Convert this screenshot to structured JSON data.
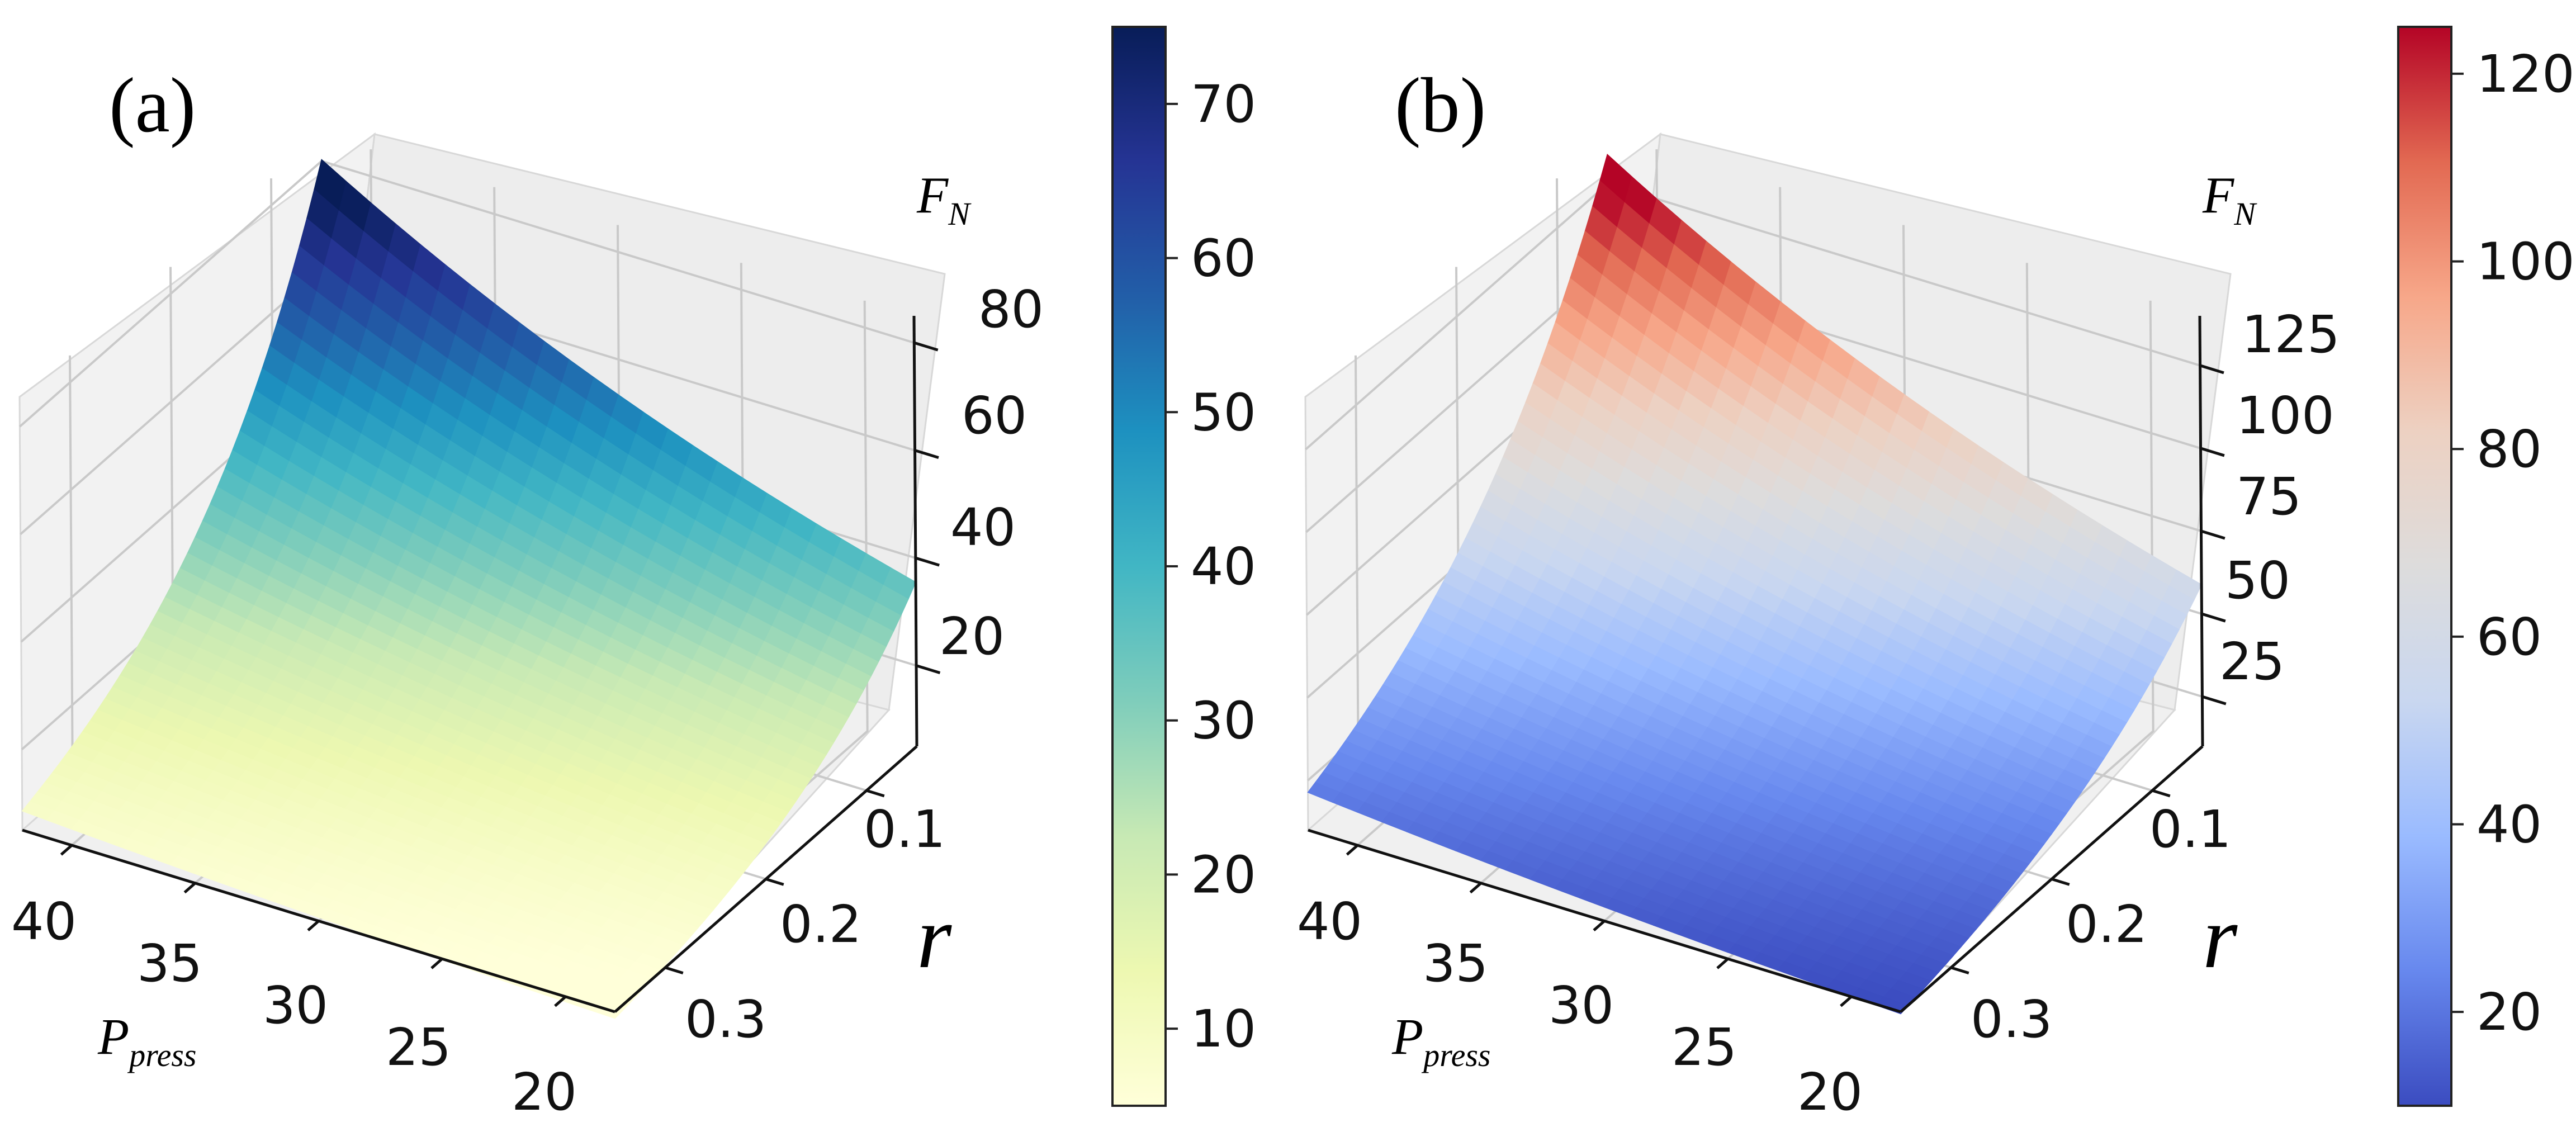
{
  "chart_data": [
    {
      "type": "surface3d",
      "panel_label": "(a)",
      "colormap": "YlGnBu",
      "colormap_stops": [
        "#ffffd9",
        "#edf8b1",
        "#c7e9b4",
        "#7fcdbb",
        "#41b6c4",
        "#1d91c0",
        "#225ea8",
        "#253494",
        "#081d58"
      ],
      "x_axis": {
        "label_main": "P",
        "label_sub": "press",
        "ticks": [
          "40",
          "35",
          "30",
          "25",
          "20"
        ],
        "range": [
          18,
          42
        ]
      },
      "y_axis": {
        "label": "r",
        "ticks": [
          "0.1",
          "0.2",
          "0.3"
        ],
        "range": [
          0.05,
          0.35
        ]
      },
      "z_axis": {
        "label_main": "F",
        "label_sub": "N",
        "ticks": [
          "20",
          "40",
          "60",
          "80"
        ],
        "range": [
          5,
          85
        ]
      },
      "colorbar": {
        "ticks": [
          "10",
          "20",
          "30",
          "40",
          "50",
          "60",
          "70"
        ],
        "range": [
          5,
          75
        ]
      },
      "corner_values": {
        "P40_r0.05": 75,
        "P20_r0.05": 38,
        "P40_r0.35": 8,
        "P20_r0.35": 5
      }
    },
    {
      "type": "surface3d",
      "panel_label": "(b)",
      "colormap": "coolwarm",
      "colormap_stops": [
        "#3b4cc0",
        "#6788ee",
        "#9abbff",
        "#c9d7f0",
        "#dddcdc",
        "#edd1c2",
        "#f7a789",
        "#e26952",
        "#b40426"
      ],
      "x_axis": {
        "label_main": "P",
        "label_sub": "press",
        "ticks": [
          "40",
          "35",
          "30",
          "25",
          "20"
        ],
        "range": [
          18,
          42
        ]
      },
      "y_axis": {
        "label": "r",
        "ticks": [
          "0.1",
          "0.2",
          "0.3"
        ],
        "range": [
          0.05,
          0.35
        ]
      },
      "z_axis": {
        "label_main": "F",
        "label_sub": "N",
        "ticks": [
          "25",
          "50",
          "75",
          "100",
          "125"
        ],
        "range": [
          10,
          140
        ]
      },
      "colorbar": {
        "ticks": [
          "20",
          "40",
          "60",
          "80",
          "100",
          "120"
        ],
        "range": [
          10,
          125
        ]
      },
      "corner_values": {
        "P40_r0.05": 125,
        "P20_r0.05": 63,
        "P40_r0.35": 20,
        "P20_r0.35": 12
      }
    }
  ]
}
